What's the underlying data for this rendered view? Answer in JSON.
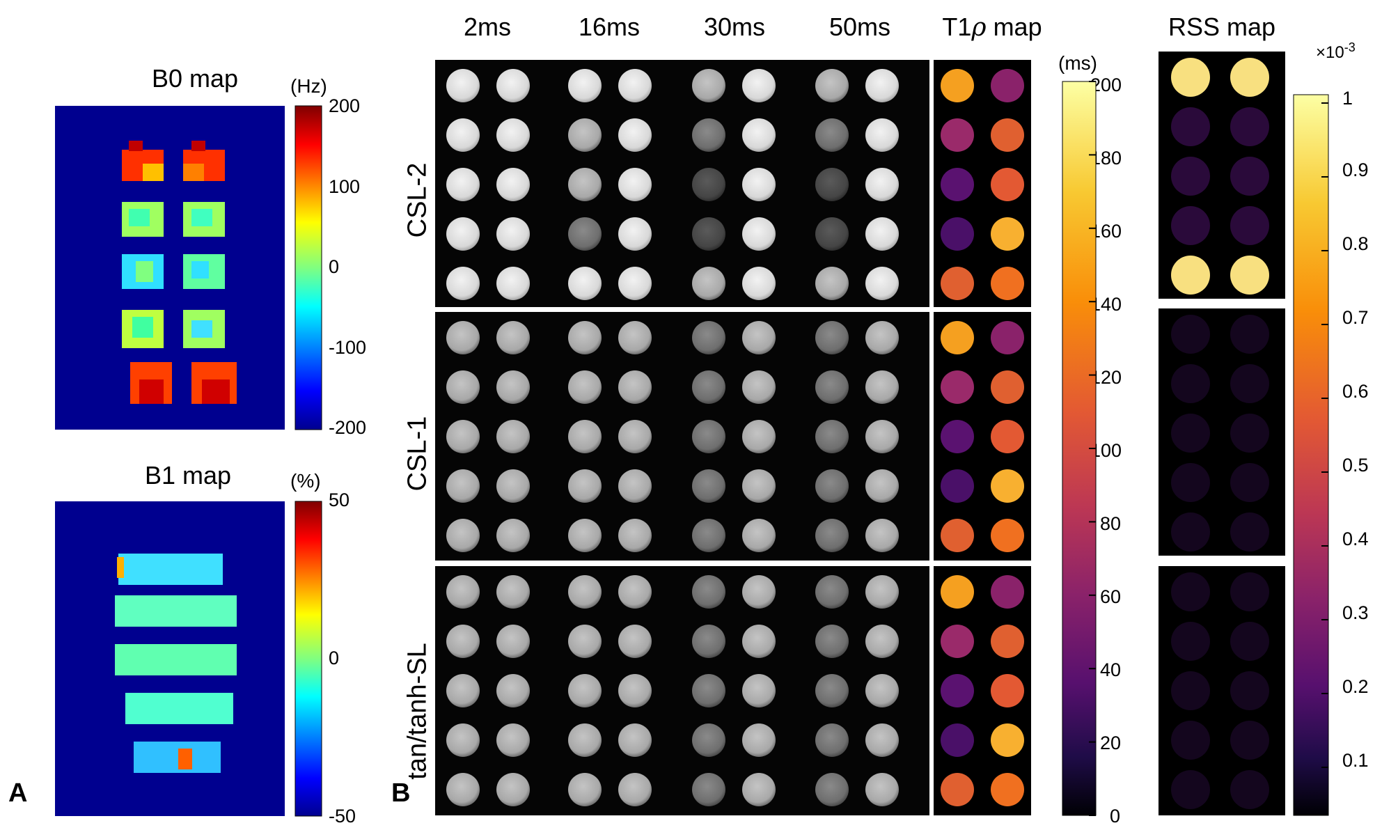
{
  "panel_a": {
    "letter": "A",
    "b0": {
      "title": "B0 map",
      "unit": "(Hz)",
      "ticks": [
        "200",
        "100",
        "0",
        "-100",
        "-200"
      ],
      "colormap": [
        "#7f0000",
        "#ff0000",
        "#ff8000",
        "#ffff00",
        "#80ff80",
        "#00ffff",
        "#0080ff",
        "#0000ff",
        "#00008f"
      ],
      "background": "#00008f"
    },
    "b1": {
      "title": "B1 map",
      "unit": "(%)",
      "ticks": [
        "50",
        "0",
        "-50"
      ]
    }
  },
  "panel_b": {
    "letter": "B",
    "columns": [
      "2ms",
      "16ms",
      "30ms",
      "50ms"
    ],
    "t1rho_title_main": "T1",
    "t1rho_title_sym": "ρ",
    "t1rho_title_rest": " map",
    "rss_title": "RSS map",
    "rows": [
      "CSL-2",
      "CSL-1",
      "tan/tanh-SL"
    ],
    "t1rho_cbar": {
      "unit": "(ms)",
      "ticks": [
        "200",
        "180",
        "160",
        "140",
        "120",
        "100",
        "80",
        "60",
        "40",
        "20",
        "0"
      ],
      "colormap": [
        "#fcffa4",
        "#f8c932",
        "#f98e09",
        "#e35933",
        "#bc3754",
        "#8a226a",
        "#57106e",
        "#1f0c48",
        "#000004"
      ]
    },
    "rss_cbar": {
      "multiplier_prefix": "×10",
      "multiplier_exp": "-3",
      "ticks": [
        "1",
        "0.9",
        "0.8",
        "0.7",
        "0.6",
        "0.5",
        "0.4",
        "0.3",
        "0.2",
        "0.1"
      ]
    }
  }
}
